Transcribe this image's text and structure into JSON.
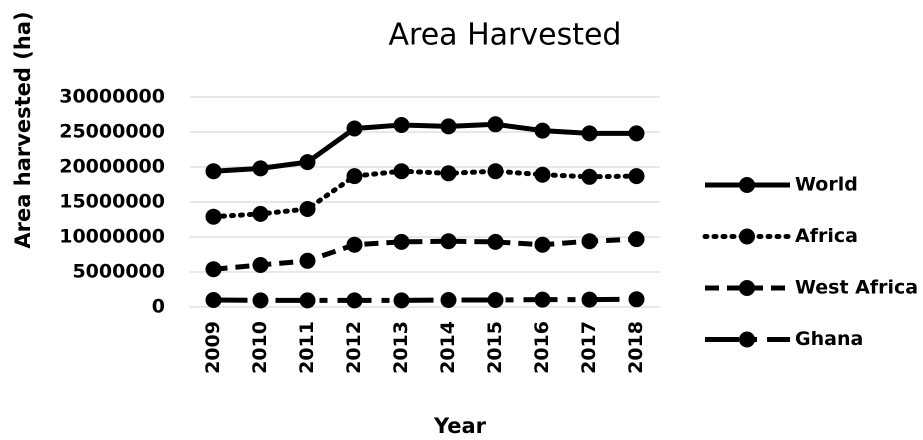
{
  "chart_data": {
    "type": "line",
    "title": "Area Harvested",
    "x_label": "Year",
    "y_label": "Area harvested (ha)",
    "categories": [
      "2009",
      "2010",
      "2011",
      "2012",
      "2013",
      "2014",
      "2015",
      "2016",
      "2017",
      "2018"
    ],
    "series": [
      {
        "name": "World",
        "color": "#000000",
        "dash": "solid",
        "values": [
          19400000,
          19800000,
          20700000,
          25500000,
          26000000,
          25800000,
          26100000,
          25200000,
          24800000,
          24800000
        ]
      },
      {
        "name": "Africa",
        "color": "#000000",
        "dash": "dot",
        "values": [
          12900000,
          13300000,
          14000000,
          18700000,
          19400000,
          19100000,
          19400000,
          18900000,
          18600000,
          18700000
        ]
      },
      {
        "name": "West Africa",
        "color": "#000000",
        "dash": "dash",
        "values": [
          5400000,
          6000000,
          6600000,
          8900000,
          9300000,
          9400000,
          9300000,
          8900000,
          9400000,
          9700000
        ]
      },
      {
        "name": "Ghana",
        "color": "#000000",
        "dash": "longdash",
        "values": [
          1000000,
          950000,
          950000,
          950000,
          950000,
          1000000,
          1000000,
          1050000,
          1050000,
          1100000
        ]
      }
    ],
    "ylim": [
      0,
      30000000
    ],
    "yticks": [
      0,
      5000000,
      10000000,
      15000000,
      20000000,
      25000000,
      30000000
    ],
    "grid": true,
    "legend": "right"
  }
}
